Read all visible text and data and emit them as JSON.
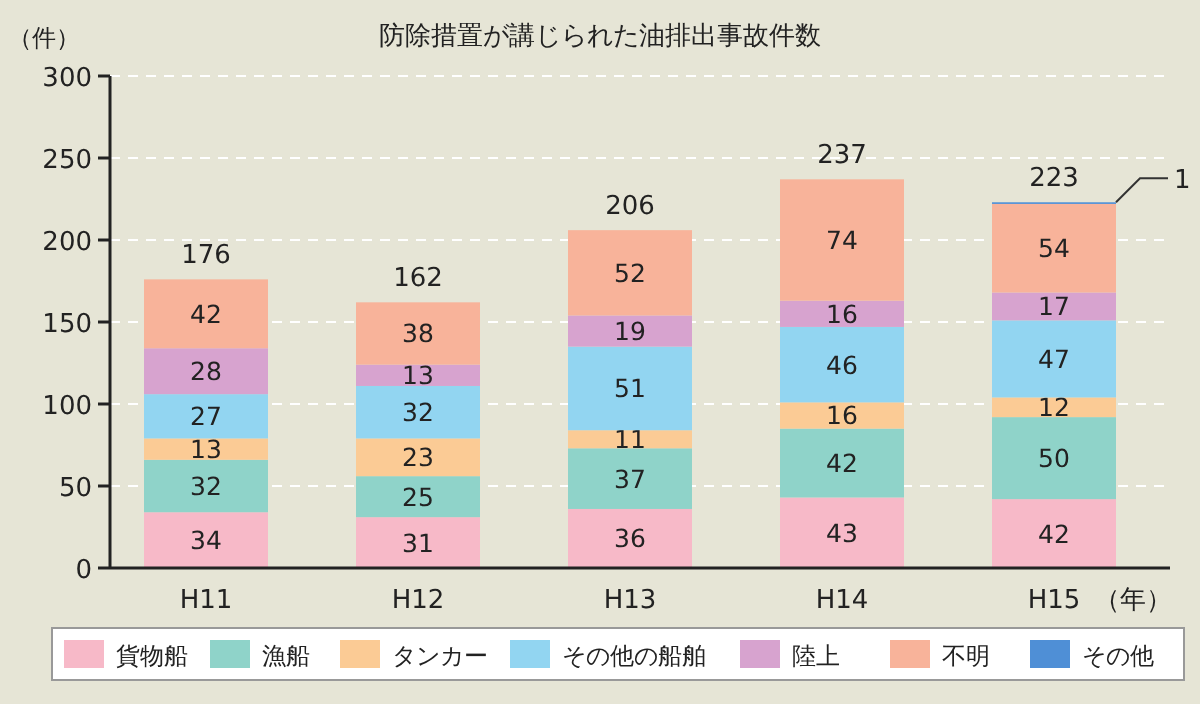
{
  "chart_data": {
    "type": "bar",
    "stacked": true,
    "title": "防除措置が講じられた油排出事故件数",
    "ylabel": "（件）",
    "xlabel": "（年）",
    "categories": [
      "H11",
      "H12",
      "H13",
      "H14",
      "H15"
    ],
    "series": [
      {
        "name": "貨物船",
        "color": "#f7b9c8",
        "values": [
          34,
          31,
          36,
          43,
          42
        ]
      },
      {
        "name": "漁船",
        "color": "#8fd3c9",
        "values": [
          32,
          25,
          37,
          42,
          50
        ]
      },
      {
        "name": "タンカー",
        "color": "#fbcb95",
        "values": [
          13,
          23,
          11,
          16,
          12
        ]
      },
      {
        "name": "その他の船舶",
        "color": "#92d5f1",
        "values": [
          27,
          32,
          51,
          46,
          47
        ]
      },
      {
        "name": "陸上",
        "color": "#d7a3cf",
        "values": [
          28,
          13,
          19,
          16,
          17
        ]
      },
      {
        "name": "不明",
        "color": "#f8b39a",
        "values": [
          42,
          38,
          52,
          74,
          54
        ]
      },
      {
        "name": "その他",
        "color": "#4f8fd6",
        "values": [
          null,
          null,
          null,
          null,
          1
        ]
      }
    ],
    "ylim": [
      0,
      300
    ],
    "yticks": [
      0,
      50,
      100,
      150,
      200,
      250,
      300
    ],
    "grid": "y",
    "legend": "bottom",
    "data_labels": true,
    "totals": [
      "176",
      "162",
      "206",
      "237",
      "223"
    ]
  }
}
